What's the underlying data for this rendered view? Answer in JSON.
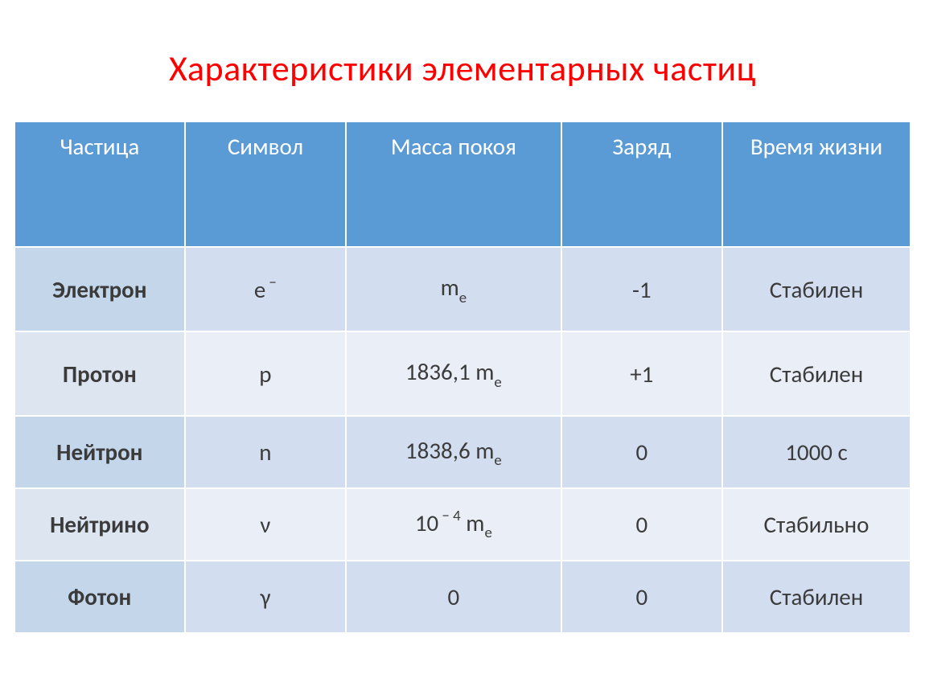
{
  "title": {
    "text": "Характеристики элементарных частиц",
    "color": "#ff0000",
    "fontsize": 44
  },
  "table": {
    "header_bg": "#5b9bd5",
    "header_fg": "#ffffff",
    "row_bg_odd": "#d2deef",
    "row_bg_even": "#eaeff7",
    "rowhead_bg_odd": "#c3d6ea",
    "rowhead_bg_even": "#dde5f1",
    "text_color": "#3b3b3b",
    "cell_fontsize": 29,
    "border_color": "#ffffff",
    "col_widths_pct": [
      19,
      18,
      24,
      18,
      21
    ],
    "columns": [
      "Частица",
      "Символ",
      "Масса покоя",
      "Заряд",
      "Время жизни"
    ],
    "rows": [
      {
        "particle": "Электрон",
        "symbol_base": "e",
        "symbol_sup": "−",
        "symbol_sub": "",
        "mass_prefix": "",
        "mass_base": "m",
        "mass_sub": "e",
        "mass_sup": "",
        "charge": "-1",
        "lifetime": "Стабилен"
      },
      {
        "particle": "Протон",
        "symbol_base": "p",
        "symbol_sup": "",
        "symbol_sub": "",
        "mass_prefix": "1836,1 ",
        "mass_base": "m",
        "mass_sub": "e",
        "mass_sup": "",
        "charge": "+1",
        "lifetime": "Стабилен"
      },
      {
        "particle": "Нейтрон",
        "symbol_base": "n",
        "symbol_sup": "",
        "symbol_sub": "",
        "mass_prefix": "1838,6 ",
        "mass_base": "m",
        "mass_sub": "e",
        "mass_sup": "",
        "charge": "0",
        "lifetime": "1000 с"
      },
      {
        "particle": "Нейтрино",
        "symbol_base": "ν",
        "symbol_sup": "",
        "symbol_sub": "",
        "mass_prefix": "10",
        "mass_base": " m",
        "mass_sub": "e",
        "mass_sup": " − 4",
        "charge": "0",
        "lifetime": "Стабильно"
      },
      {
        "particle": "Фотон",
        "symbol_base": "γ",
        "symbol_sup": "",
        "symbol_sub": "",
        "mass_prefix": "0",
        "mass_base": "",
        "mass_sub": "",
        "mass_sup": "",
        "charge": "0",
        "lifetime": "Стабилен"
      }
    ]
  }
}
